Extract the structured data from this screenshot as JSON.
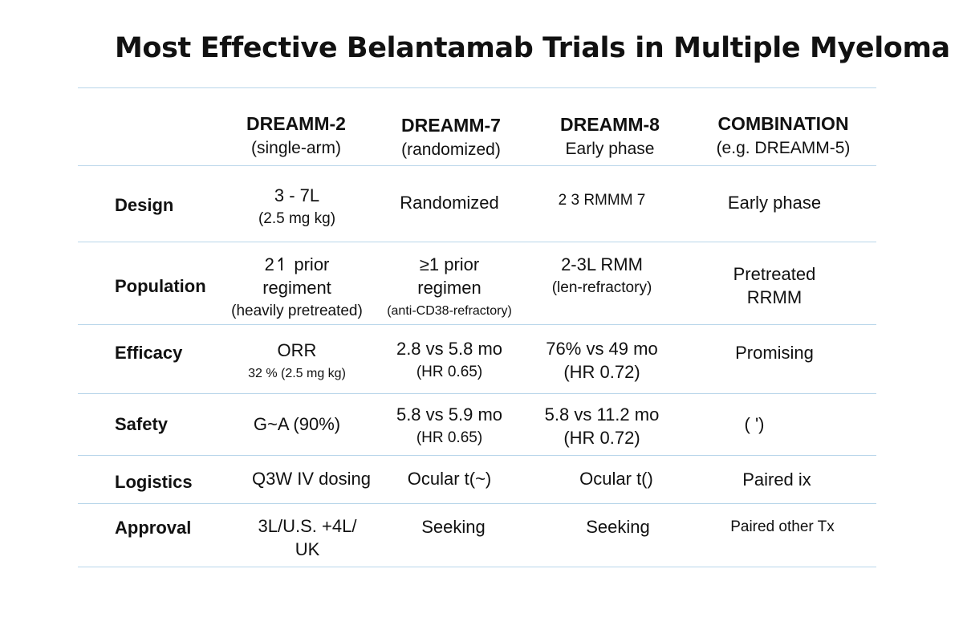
{
  "title": "Most Effective Belantamab Trials in Multiple Myeloma",
  "columns": [
    {
      "name": "DREAMM-2",
      "sub": "(single-arm)"
    },
    {
      "name": "DREAMM-7",
      "sub": "(randomized)"
    },
    {
      "name": "DREAMM-8",
      "sub": "Early phase"
    },
    {
      "name": "COMBINATION",
      "sub": "(e.g. DREAMM-5)"
    }
  ],
  "rows": {
    "design": {
      "label": "Design",
      "c1": [
        "3 - 7L",
        "(2.5 mg kg)"
      ],
      "c2": [
        "Randomized"
      ],
      "c3": [
        "2 3 RMMM 7"
      ],
      "c4": [
        "Early  phase"
      ]
    },
    "population": {
      "label": "Population",
      "c1": [
        "2↿ prior",
        "regiment",
        "(heavily pretreated)"
      ],
      "c2": [
        "≥1 prior",
        "regimen",
        "(anti-CD38-refractory)"
      ],
      "c3": [
        "2-3L RMM",
        "(len-refractory)"
      ],
      "c4": [
        "Pretreated",
        "RRMM"
      ]
    },
    "efficacy": {
      "label": "Efficacy",
      "c1": [
        "ORR",
        "32 % (2.5 mg kg)"
      ],
      "c2": [
        "2.8 vs 5.8 mo",
        "(HR 0.65)"
      ],
      "c3": [
        "76% vs 49 mo",
        "(HR 0.72)"
      ],
      "c4": [
        "Promising"
      ]
    },
    "safety": {
      "label": "Safety",
      "c1": [
        "G~A (90%)"
      ],
      "c2": [
        "5.8 vs 5.9 mo",
        "(HR 0.65)"
      ],
      "c3": [
        "5.8 vs 11.2 mo",
        "(HR 0.72)"
      ],
      "c4": [
        "( ʹ)"
      ]
    },
    "logistics": {
      "label": "Logistics",
      "c1": [
        "Q3W IV dosing"
      ],
      "c2": [
        "Ocular t(~)"
      ],
      "c3": [
        "Ocular t()"
      ],
      "c4": [
        "Paired ix"
      ]
    },
    "approval": {
      "label": "Approval",
      "c1": [
        "3L/U.S. +4L/",
        "UK"
      ],
      "c2": [
        "Seeking"
      ],
      "c3": [
        "Seeking"
      ],
      "c4": [
        "Paired other Tx"
      ]
    }
  }
}
